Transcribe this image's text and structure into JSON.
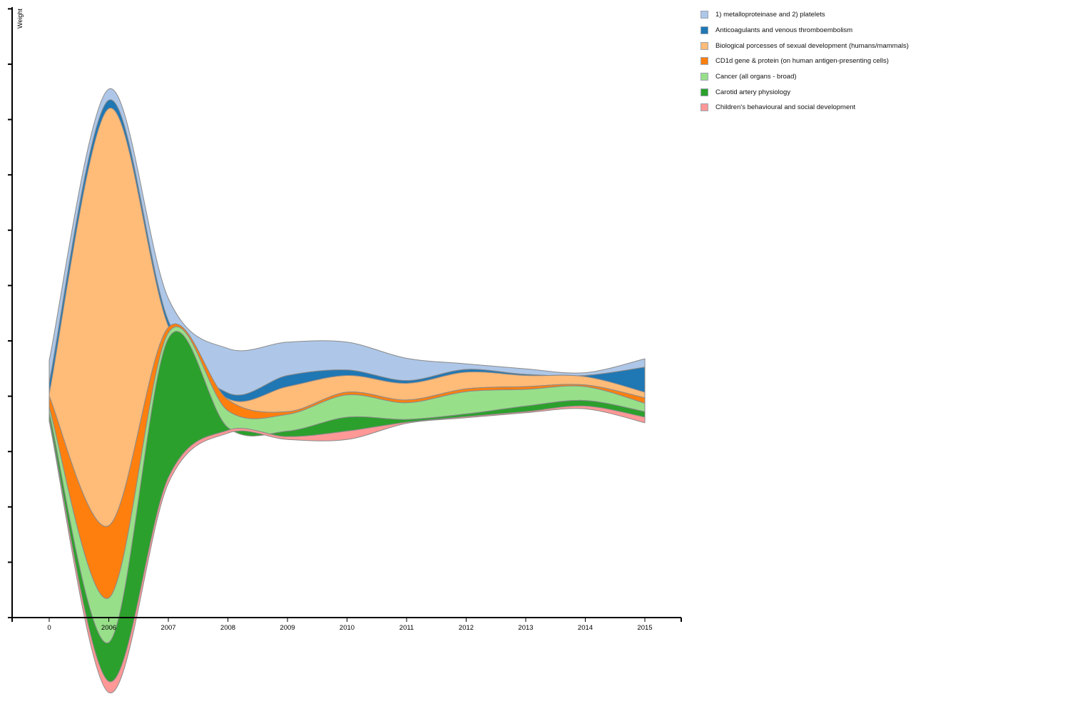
{
  "chart_data": {
    "type": "area",
    "subtype": "streamgraph",
    "ylabel": "Weight",
    "xlabel": "",
    "categories": [
      "0",
      "2006",
      "2007",
      "2008",
      "2009",
      "2010",
      "2011",
      "2012",
      "2013",
      "2014",
      "2015"
    ],
    "legend_position": "top-right",
    "grid": false,
    "series": [
      {
        "name": "1) metalloproteinase and 2) platelets",
        "color": "#aec7e8",
        "values": [
          0.4,
          0.2,
          0.4,
          0.8,
          0.6,
          0.5,
          0.4,
          0.1,
          0.1,
          0.05,
          0.15
        ]
      },
      {
        "name": "Anticoagulants and venous thromboembolism",
        "color": "#1f77b4",
        "values": [
          0.2,
          0.15,
          0.1,
          0.1,
          0.2,
          0.1,
          0.05,
          0.05,
          0.02,
          0.02,
          0.45
        ]
      },
      {
        "name": "Biological porcesses of sexual development (humans/mammals)",
        "color": "#ffbb78",
        "values": [
          0.05,
          7.5,
          0.02,
          0.02,
          0.45,
          0.3,
          0.3,
          0.3,
          0.2,
          0.15,
          0.1
        ]
      },
      {
        "name": "CD1d gene & protein (on human antigen-presenting cells)",
        "color": "#ff7f0e",
        "values": [
          0.2,
          1.3,
          0.1,
          0.2,
          0.05,
          0.05,
          0.05,
          0.05,
          0.05,
          0.03,
          0.1
        ]
      },
      {
        "name": "Cancer (all organs - broad)",
        "color": "#98df8a",
        "values": [
          0.1,
          0.8,
          0.1,
          0.3,
          0.3,
          0.4,
          0.3,
          0.4,
          0.3,
          0.25,
          0.15
        ]
      },
      {
        "name": "Carotid artery physiology",
        "color": "#2ca02c",
        "values": [
          0.1,
          0.7,
          2.5,
          0.05,
          0.1,
          0.25,
          0.05,
          0.05,
          0.1,
          0.1,
          0.1
        ]
      },
      {
        "name": "Children's behavioural and social development",
        "color": "#ff9896",
        "values": [
          0.05,
          0.2,
          0.1,
          0.05,
          0.05,
          0.15,
          0.02,
          0.02,
          0.02,
          0.05,
          0.1
        ]
      }
    ]
  }
}
